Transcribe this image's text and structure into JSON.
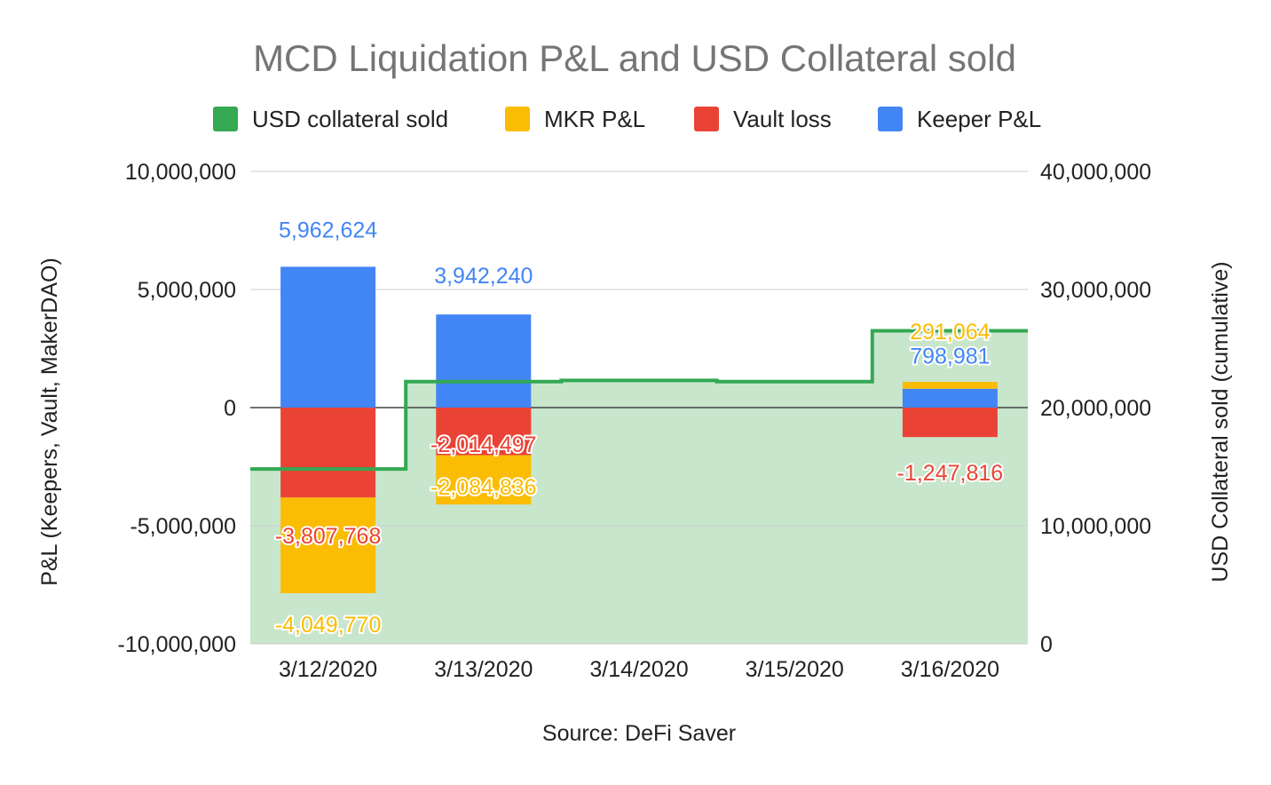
{
  "chart_data": {
    "type": "bar",
    "title": "MCD Liquidation P&L and USD Collateral sold",
    "source": "Source: DeFi Saver",
    "categories": [
      "3/12/2020",
      "3/13/2020",
      "3/14/2020",
      "3/15/2020",
      "3/16/2020"
    ],
    "y_left": {
      "label": "P&L (Keepers, Vault, MakerDAO)",
      "range": [
        -10000000,
        10000000
      ],
      "ticks": [
        10000000,
        5000000,
        0,
        -5000000,
        -10000000
      ],
      "tick_labels": [
        "10,000,000",
        "5,000,000",
        "0",
        "-5,000,000",
        "-10,000,000"
      ]
    },
    "y_right": {
      "label": "USD Collateral sold (cumulative)",
      "range": [
        0,
        40000000
      ],
      "ticks": [
        40000000,
        30000000,
        20000000,
        10000000,
        0
      ],
      "tick_labels": [
        "40,000,000",
        "30,000,000",
        "20,000,000",
        "10,000,000",
        "0"
      ]
    },
    "legend": {
      "position": "top",
      "items": [
        {
          "name": "USD collateral sold",
          "color": "#34a853"
        },
        {
          "name": "MKR P&L",
          "color": "#fbbc04"
        },
        {
          "name": "Vault loss",
          "color": "#ea4335"
        },
        {
          "name": "Keeper P&L",
          "color": "#4285f4"
        }
      ]
    },
    "series": [
      {
        "name": "Keeper P&L",
        "color": "#4285f4",
        "axis": "left",
        "type": "stacked-bar",
        "values": [
          5962624,
          3942240,
          0,
          0,
          798981
        ],
        "labels": [
          "5,962,624",
          "3,942,240",
          "",
          "",
          "798,981"
        ]
      },
      {
        "name": "Vault loss",
        "color": "#ea4335",
        "axis": "left",
        "type": "stacked-bar",
        "values": [
          -3807768,
          -2014497,
          0,
          0,
          -1247816
        ],
        "labels": [
          "-3,807,768",
          "-2,014,497",
          "",
          "",
          "-1,247,816"
        ]
      },
      {
        "name": "MKR P&L",
        "color": "#fbbc04",
        "axis": "left",
        "type": "stacked-bar",
        "values": [
          -4049770,
          -2084836,
          0,
          0,
          291064
        ],
        "labels": [
          "-4,049,770",
          "-2,084,836",
          "",
          "",
          "291,064"
        ]
      },
      {
        "name": "USD collateral sold",
        "color": "#34a853",
        "fill": "#c8e6cc",
        "axis": "right",
        "type": "stepped-area",
        "values": [
          14800000,
          22200000,
          22300000,
          22200000,
          26500000
        ]
      }
    ],
    "grid": true
  }
}
